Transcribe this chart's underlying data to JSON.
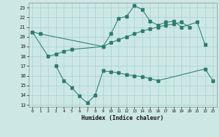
{
  "x_all": [
    0,
    1,
    2,
    3,
    4,
    5,
    6,
    7,
    8,
    9,
    10,
    11,
    12,
    13,
    14,
    15,
    16,
    17,
    18,
    19,
    20,
    21,
    22,
    23
  ],
  "line1_x": [
    0,
    1,
    9,
    10,
    11,
    12,
    13,
    14,
    15,
    16,
    17,
    18,
    19,
    21,
    22
  ],
  "line1_y": [
    20.5,
    20.3,
    19.0,
    20.3,
    21.9,
    22.1,
    23.2,
    22.8,
    21.6,
    21.2,
    21.5,
    21.6,
    21.0,
    21.5,
    19.2
  ],
  "line2_x": [
    0,
    2,
    3,
    4,
    5,
    9,
    10,
    11,
    12,
    13,
    14,
    15,
    16,
    17,
    18,
    19,
    20
  ],
  "line2_y": [
    20.5,
    18.0,
    18.2,
    18.5,
    18.7,
    19.0,
    19.4,
    19.7,
    20.0,
    20.3,
    20.6,
    20.8,
    21.0,
    21.2,
    21.3,
    21.5,
    21.0
  ],
  "line3_x": [
    3,
    4,
    5,
    6,
    7,
    8,
    9,
    10,
    11,
    12,
    13,
    14,
    15,
    16,
    22,
    23
  ],
  "line3_y": [
    17.0,
    15.5,
    14.8,
    13.9,
    13.2,
    14.0,
    16.5,
    16.4,
    16.3,
    16.1,
    16.0,
    15.9,
    15.7,
    15.5,
    16.7,
    15.5
  ],
  "color": "#2e7d6e",
  "bg_color": "#cde8e4",
  "grid_color": "#a8d4d0",
  "xlabel": "Humidex (Indice chaleur)",
  "xlim": [
    -0.5,
    23.5
  ],
  "ylim": [
    12.8,
    23.5
  ],
  "yticks": [
    13,
    14,
    15,
    16,
    17,
    18,
    19,
    20,
    21,
    22,
    23
  ],
  "xticks": [
    0,
    1,
    2,
    3,
    4,
    5,
    6,
    7,
    8,
    9,
    10,
    11,
    12,
    13,
    14,
    15,
    16,
    17,
    18,
    19,
    20,
    21,
    22,
    23
  ]
}
